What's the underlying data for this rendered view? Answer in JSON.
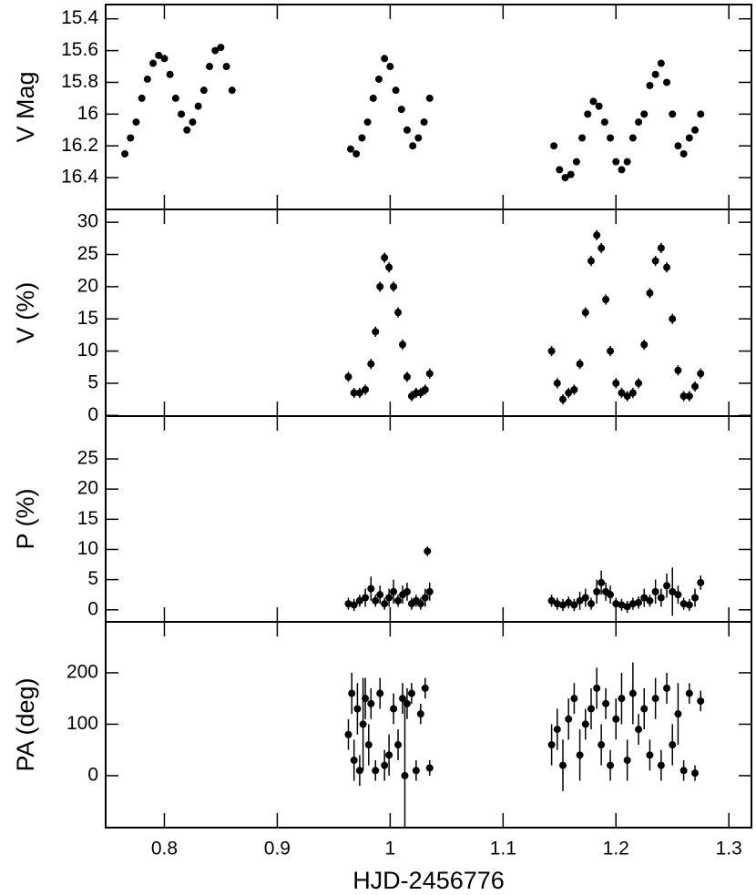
{
  "chart_data": [
    {
      "type": "scatter",
      "ylabel": "V Mag",
      "color": "#000000",
      "ylim": [
        16.6,
        15.31
      ],
      "yticks": [
        15.4,
        15.6,
        15.8,
        16,
        16.2,
        16.4
      ],
      "x": [
        0.765,
        0.77,
        0.775,
        0.78,
        0.785,
        0.79,
        0.795,
        0.8,
        0.805,
        0.81,
        0.815,
        0.82,
        0.825,
        0.83,
        0.835,
        0.84,
        0.845,
        0.85,
        0.855,
        0.86,
        0.965,
        0.97,
        0.975,
        0.98,
        0.985,
        0.99,
        0.995,
        1.0,
        1.005,
        1.01,
        1.015,
        1.02,
        1.025,
        1.03,
        1.035,
        1.145,
        1.15,
        1.155,
        1.16,
        1.165,
        1.17,
        1.175,
        1.18,
        1.185,
        1.19,
        1.195,
        1.2,
        1.205,
        1.21,
        1.215,
        1.22,
        1.225,
        1.23,
        1.235,
        1.24,
        1.245,
        1.25,
        1.255,
        1.26,
        1.265,
        1.27,
        1.275
      ],
      "values": [
        16.25,
        16.15,
        16.05,
        15.9,
        15.78,
        15.68,
        15.63,
        15.65,
        15.75,
        15.9,
        16.0,
        16.1,
        16.05,
        15.95,
        15.85,
        15.7,
        15.6,
        15.58,
        15.7,
        15.85,
        16.22,
        16.25,
        16.15,
        16.05,
        15.9,
        15.78,
        15.65,
        15.7,
        15.85,
        15.97,
        16.1,
        16.2,
        16.15,
        16.05,
        15.9,
        16.2,
        16.35,
        16.4,
        16.38,
        16.3,
        16.15,
        16.0,
        15.92,
        15.95,
        16.05,
        16.15,
        16.3,
        16.35,
        16.3,
        16.15,
        16.05,
        16.0,
        15.82,
        15.75,
        15.68,
        15.8,
        16.0,
        16.2,
        16.25,
        16.15,
        16.1,
        16.0
      ]
    },
    {
      "type": "errorbar",
      "ylabel": "V (%)",
      "color": "#000000",
      "ylim": [
        -0.1,
        32
      ],
      "yticks": [
        0,
        5,
        10,
        15,
        20,
        25,
        30
      ],
      "x": [
        0.963,
        0.968,
        0.973,
        0.978,
        0.983,
        0.987,
        0.991,
        0.995,
        0.999,
        1.003,
        1.007,
        1.011,
        1.015,
        1.019,
        1.023,
        1.027,
        1.031,
        1.035,
        1.143,
        1.148,
        1.153,
        1.158,
        1.163,
        1.168,
        1.173,
        1.178,
        1.183,
        1.187,
        1.191,
        1.195,
        1.2,
        1.205,
        1.21,
        1.215,
        1.22,
        1.225,
        1.23,
        1.235,
        1.24,
        1.245,
        1.25,
        1.255,
        1.26,
        1.265,
        1.27,
        1.275
      ],
      "values": [
        6,
        3.5,
        3.5,
        4,
        8,
        13,
        20,
        24.5,
        23,
        20,
        16,
        11,
        6,
        3,
        3.5,
        3.5,
        4,
        6.5,
        10,
        5,
        2.5,
        3.5,
        4,
        8,
        16,
        24,
        28,
        26,
        18,
        10,
        5,
        3.5,
        3,
        3.5,
        5,
        11,
        19,
        24,
        26,
        23,
        15,
        7,
        3,
        3,
        4.5,
        6.5
      ],
      "errors": [
        0.8,
        0.8,
        0.8,
        0.8,
        0.8,
        0.8,
        0.8,
        0.8,
        0.8,
        0.8,
        0.8,
        0.8,
        0.8,
        0.8,
        0.8,
        0.8,
        0.8,
        0.8,
        0.8,
        0.8,
        0.8,
        0.8,
        0.8,
        0.8,
        0.8,
        0.8,
        0.8,
        0.8,
        0.8,
        0.8,
        0.8,
        0.8,
        0.8,
        0.8,
        0.8,
        0.8,
        0.8,
        0.8,
        0.8,
        0.8,
        0.8,
        0.8,
        0.8,
        0.8,
        0.8,
        0.8
      ]
    },
    {
      "type": "errorbar",
      "ylabel": "P (%)",
      "color": "#000000",
      "ylim": [
        -2,
        32.1
      ],
      "yticks": [
        0,
        5,
        10,
        15,
        20,
        25
      ],
      "x": [
        0.963,
        0.968,
        0.973,
        0.978,
        0.983,
        0.987,
        0.991,
        0.995,
        0.999,
        1.003,
        1.007,
        1.011,
        1.015,
        1.019,
        1.023,
        1.027,
        1.031,
        1.033,
        1.035,
        1.143,
        1.148,
        1.153,
        1.158,
        1.163,
        1.168,
        1.173,
        1.178,
        1.183,
        1.187,
        1.191,
        1.195,
        1.2,
        1.205,
        1.21,
        1.215,
        1.22,
        1.225,
        1.23,
        1.235,
        1.24,
        1.245,
        1.25,
        1.255,
        1.26,
        1.265,
        1.27,
        1.275
      ],
      "values": [
        1,
        0.8,
        1.5,
        2,
        3.5,
        1.5,
        2.5,
        1,
        2,
        3,
        1.5,
        2.5,
        3,
        1,
        1.5,
        1,
        2,
        9.7,
        3,
        1.5,
        1,
        0.8,
        1.2,
        0.8,
        1.5,
        2,
        1,
        3,
        4.5,
        3,
        2.5,
        1,
        0.8,
        0.5,
        1,
        1.2,
        2,
        1.5,
        3,
        2,
        4,
        3,
        2.5,
        1,
        0.8,
        2,
        4.5
      ],
      "errors": [
        1,
        1,
        1,
        1.5,
        2,
        1,
        1.5,
        1,
        1.5,
        2,
        1,
        1.5,
        1.5,
        1,
        1,
        1,
        1.5,
        0.8,
        1.5,
        1,
        1,
        1,
        1,
        1,
        1.5,
        1.5,
        1,
        2,
        2,
        1.5,
        1.5,
        1,
        1,
        1,
        1,
        1,
        1.5,
        1,
        2,
        1.5,
        2,
        4,
        1.5,
        1,
        1,
        1.5,
        1.2
      ]
    },
    {
      "type": "errorbar",
      "ylabel": "PA (deg)",
      "color": "#000000",
      "xlabel": "HJD-2456776",
      "xlim": [
        0.748,
        1.32
      ],
      "xticks": [
        0.8,
        0.9,
        1,
        1.1,
        1.2,
        1.3
      ],
      "ylim": [
        -101,
        299
      ],
      "yticks": [
        0,
        100,
        200
      ],
      "x": [
        0.963,
        0.966,
        0.968,
        0.971,
        0.973,
        0.976,
        0.978,
        0.981,
        0.983,
        0.987,
        0.991,
        0.995,
        0.999,
        1.003,
        1.007,
        1.011,
        1.013,
        1.015,
        1.019,
        1.023,
        1.027,
        1.031,
        1.035,
        1.143,
        1.148,
        1.153,
        1.158,
        1.163,
        1.168,
        1.173,
        1.178,
        1.183,
        1.187,
        1.191,
        1.195,
        1.2,
        1.205,
        1.21,
        1.215,
        1.22,
        1.225,
        1.23,
        1.235,
        1.24,
        1.245,
        1.25,
        1.255,
        1.26,
        1.265,
        1.27,
        1.275
      ],
      "values": [
        80,
        160,
        30,
        130,
        10,
        100,
        150,
        60,
        140,
        10,
        160,
        20,
        40,
        130,
        60,
        150,
        0,
        140,
        160,
        10,
        120,
        170,
        15,
        60,
        90,
        20,
        110,
        150,
        40,
        100,
        130,
        170,
        60,
        140,
        20,
        110,
        150,
        30,
        160,
        90,
        130,
        40,
        150,
        20,
        170,
        60,
        120,
        10,
        160,
        5,
        145
      ],
      "errors": [
        30,
        40,
        40,
        50,
        30,
        90,
        40,
        40,
        30,
        20,
        30,
        30,
        40,
        30,
        30,
        30,
        150,
        30,
        20,
        20,
        20,
        20,
        15,
        40,
        40,
        50,
        40,
        30,
        50,
        30,
        40,
        40,
        40,
        30,
        30,
        40,
        50,
        40,
        60,
        30,
        40,
        30,
        40,
        30,
        30,
        40,
        60,
        20,
        20,
        15,
        20
      ]
    }
  ]
}
